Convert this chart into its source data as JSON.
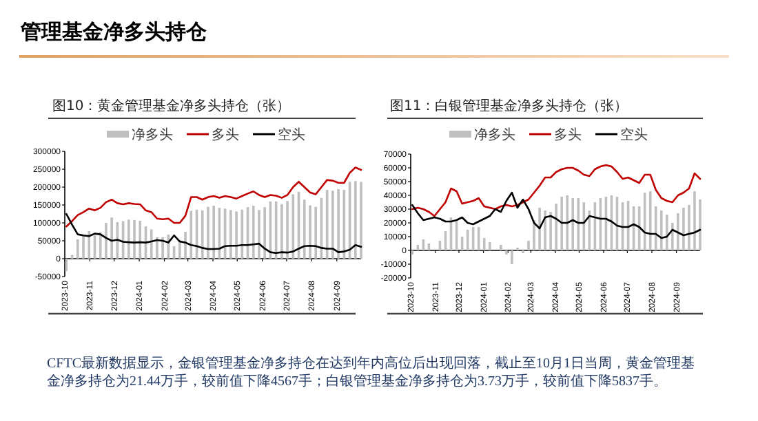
{
  "chart_data": [
    {
      "type": "other",
      "title": "管理基金净多头持仓",
      "annotations": [
        "CFTC最新数据显示，金银管理基金净多持仓在达到年内高位后出现回落，截止至10月1日当周，黄金管理基金净多持仓为21.44万手，较前值下降4567手；白银管理基金净多持仓为3.73万手，较前值下降5837手。"
      ]
    },
    {
      "type": "line",
      "title": "图10：黄金管理基金净多头持仓（张）",
      "legend": "top",
      "x": [
        "2023-10-03",
        "2023-10-10",
        "2023-10-17",
        "2023-10-24",
        "2023-10-31",
        "2023-11-07",
        "2023-11-14",
        "2023-11-21",
        "2023-11-28",
        "2023-12-05",
        "2023-12-12",
        "2023-12-19",
        "2023-12-26",
        "2024-01-02",
        "2024-01-09",
        "2024-01-16",
        "2024-01-23",
        "2024-01-30",
        "2024-02-06",
        "2024-02-13",
        "2024-02-20",
        "2024-02-27",
        "2024-03-05",
        "2024-03-12",
        "2024-03-19",
        "2024-03-26",
        "2024-04-02",
        "2024-04-09",
        "2024-04-16",
        "2024-04-23",
        "2024-04-30",
        "2024-05-07",
        "2024-05-14",
        "2024-05-21",
        "2024-05-28",
        "2024-06-04",
        "2024-06-11",
        "2024-06-18",
        "2024-06-25",
        "2024-07-02",
        "2024-07-09",
        "2024-07-16",
        "2024-07-23",
        "2024-07-30",
        "2024-08-06",
        "2024-08-13",
        "2024-08-20",
        "2024-08-27",
        "2024-09-03",
        "2024-09-10",
        "2024-09-17",
        "2024-09-24",
        "2024-10-01"
      ],
      "xlim": [
        "2023-10-01",
        "2024-10-01"
      ],
      "xticks": [
        "2023-10",
        "2023-11",
        "2023-12",
        "2024-01",
        "2024-02",
        "2024-03",
        "2024-04",
        "2024-05",
        "2024-06",
        "2024-07",
        "2024-08",
        "2024-09"
      ],
      "ylim": [
        -50000,
        300000
      ],
      "yticks": [
        -50000,
        0,
        50000,
        100000,
        150000,
        200000,
        250000,
        300000
      ],
      "series": [
        {
          "name": "净多头",
          "type": "bar",
          "color": "#bfbfbf",
          "values": [
            -35000,
            10000,
            54000,
            65000,
            77000,
            65000,
            74000,
            100000,
            115000,
            102000,
            105000,
            109000,
            108000,
            106000,
            90000,
            82000,
            60000,
            60000,
            67000,
            35000,
            52000,
            75000,
            134000,
            137000,
            135000,
            145000,
            148000,
            142000,
            140000,
            136000,
            132000,
            137000,
            144000,
            148000,
            136000,
            144000,
            160000,
            160000,
            152000,
            161000,
            180000,
            187000,
            165000,
            149000,
            145000,
            170000,
            192000,
            190000,
            194000,
            192000,
            215000,
            217000,
            215000
          ]
        },
        {
          "name": "多头",
          "type": "line",
          "color": "#c00000",
          "values": [
            90000,
            105000,
            122000,
            130000,
            140000,
            135000,
            142000,
            158000,
            165000,
            155000,
            152000,
            155000,
            153000,
            152000,
            135000,
            130000,
            112000,
            110000,
            112000,
            100000,
            100000,
            120000,
            172000,
            172000,
            165000,
            172000,
            175000,
            170000,
            175000,
            172000,
            168000,
            175000,
            182000,
            188000,
            178000,
            172000,
            178000,
            176000,
            170000,
            178000,
            200000,
            215000,
            200000,
            185000,
            180000,
            200000,
            220000,
            218000,
            212000,
            212000,
            240000,
            255000,
            248000
          ]
        },
        {
          "name": "空头",
          "type": "line",
          "color": "#000000",
          "values": [
            125000,
            95000,
            68000,
            65000,
            63000,
            70000,
            68000,
            58000,
            50000,
            53000,
            47000,
            46000,
            45000,
            46000,
            45000,
            48000,
            52000,
            50000,
            45000,
            65000,
            48000,
            45000,
            38000,
            35000,
            30000,
            27000,
            27000,
            28000,
            35000,
            36000,
            36000,
            38000,
            38000,
            40000,
            42000,
            28000,
            18000,
            16000,
            18000,
            17000,
            20000,
            28000,
            35000,
            36000,
            35000,
            30000,
            28000,
            28000,
            18000,
            20000,
            25000,
            38000,
            33000
          ]
        }
      ]
    },
    {
      "type": "line",
      "title": "图11：白银管理基金净多头持仓（张）",
      "legend": "top",
      "x": [
        "2023-10-03",
        "2023-10-10",
        "2023-10-17",
        "2023-10-24",
        "2023-10-31",
        "2023-11-07",
        "2023-11-14",
        "2023-11-21",
        "2023-11-28",
        "2023-12-05",
        "2023-12-12",
        "2023-12-19",
        "2023-12-26",
        "2024-01-02",
        "2024-01-09",
        "2024-01-16",
        "2024-01-23",
        "2024-01-30",
        "2024-02-06",
        "2024-02-13",
        "2024-02-20",
        "2024-02-27",
        "2024-03-05",
        "2024-03-12",
        "2024-03-19",
        "2024-03-26",
        "2024-04-02",
        "2024-04-09",
        "2024-04-16",
        "2024-04-23",
        "2024-04-30",
        "2024-05-07",
        "2024-05-14",
        "2024-05-21",
        "2024-05-28",
        "2024-06-04",
        "2024-06-11",
        "2024-06-18",
        "2024-06-25",
        "2024-07-02",
        "2024-07-09",
        "2024-07-16",
        "2024-07-23",
        "2024-07-30",
        "2024-08-06",
        "2024-08-13",
        "2024-08-20",
        "2024-08-27",
        "2024-09-03",
        "2024-09-10",
        "2024-09-17",
        "2024-09-24",
        "2024-10-01"
      ],
      "xlim": [
        "2023-10-01",
        "2024-10-01"
      ],
      "xticks": [
        "2023-10",
        "2023-11",
        "2023-12",
        "2024-01",
        "2024-02",
        "2024-03",
        "2024-04",
        "2024-05",
        "2024-06",
        "2024-07",
        "2024-08",
        "2024-09"
      ],
      "ylim": [
        -20000,
        70000
      ],
      "yticks": [
        -20000,
        -10000,
        0,
        10000,
        20000,
        30000,
        40000,
        50000,
        60000,
        70000
      ],
      "series": [
        {
          "name": "净多头",
          "type": "bar",
          "color": "#bfbfbf",
          "values": [
            -3000,
            4000,
            8000,
            5000,
            null,
            7000,
            14000,
            24000,
            21000,
            10000,
            15000,
            17000,
            17000,
            9000,
            6000,
            0,
            4000,
            -3000,
            -10000,
            2000,
            -2000,
            7000,
            22000,
            31000,
            29000,
            28000,
            34000,
            39000,
            40000,
            38000,
            38000,
            35000,
            29000,
            35000,
            38000,
            39000,
            40000,
            39000,
            35000,
            36000,
            32000,
            32000,
            42000,
            43000,
            32000,
            29000,
            26000,
            20000,
            27000,
            31000,
            33000,
            43000,
            37000
          ]
        },
        {
          "name": "多头",
          "type": "line",
          "color": "#c00000",
          "values": [
            30000,
            31000,
            30000,
            28000,
            25000,
            30000,
            35000,
            45000,
            43000,
            34000,
            35000,
            36000,
            38000,
            32000,
            31000,
            30000,
            32000,
            33000,
            32000,
            33000,
            35000,
            37000,
            42000,
            47000,
            53000,
            53000,
            57000,
            59000,
            60000,
            60000,
            58000,
            55000,
            54000,
            59000,
            61000,
            62000,
            61000,
            57000,
            52000,
            53000,
            51000,
            49000,
            55000,
            55000,
            44000,
            38000,
            36000,
            35000,
            40000,
            42000,
            45000,
            56000,
            52000
          ]
        },
        {
          "name": "空头",
          "type": "line",
          "color": "#000000",
          "values": [
            33000,
            27000,
            22000,
            23000,
            24000,
            23000,
            21000,
            21000,
            22000,
            24000,
            20000,
            19000,
            21000,
            23000,
            25000,
            30000,
            28000,
            36000,
            42000,
            31000,
            37000,
            30000,
            20000,
            16000,
            24000,
            25000,
            23000,
            20000,
            20000,
            22000,
            20000,
            20000,
            25000,
            24000,
            23000,
            23000,
            21000,
            18000,
            17000,
            17000,
            19000,
            17000,
            13000,
            12000,
            12000,
            9000,
            10000,
            15000,
            13000,
            11000,
            12000,
            13000,
            15000
          ]
        }
      ]
    }
  ]
}
